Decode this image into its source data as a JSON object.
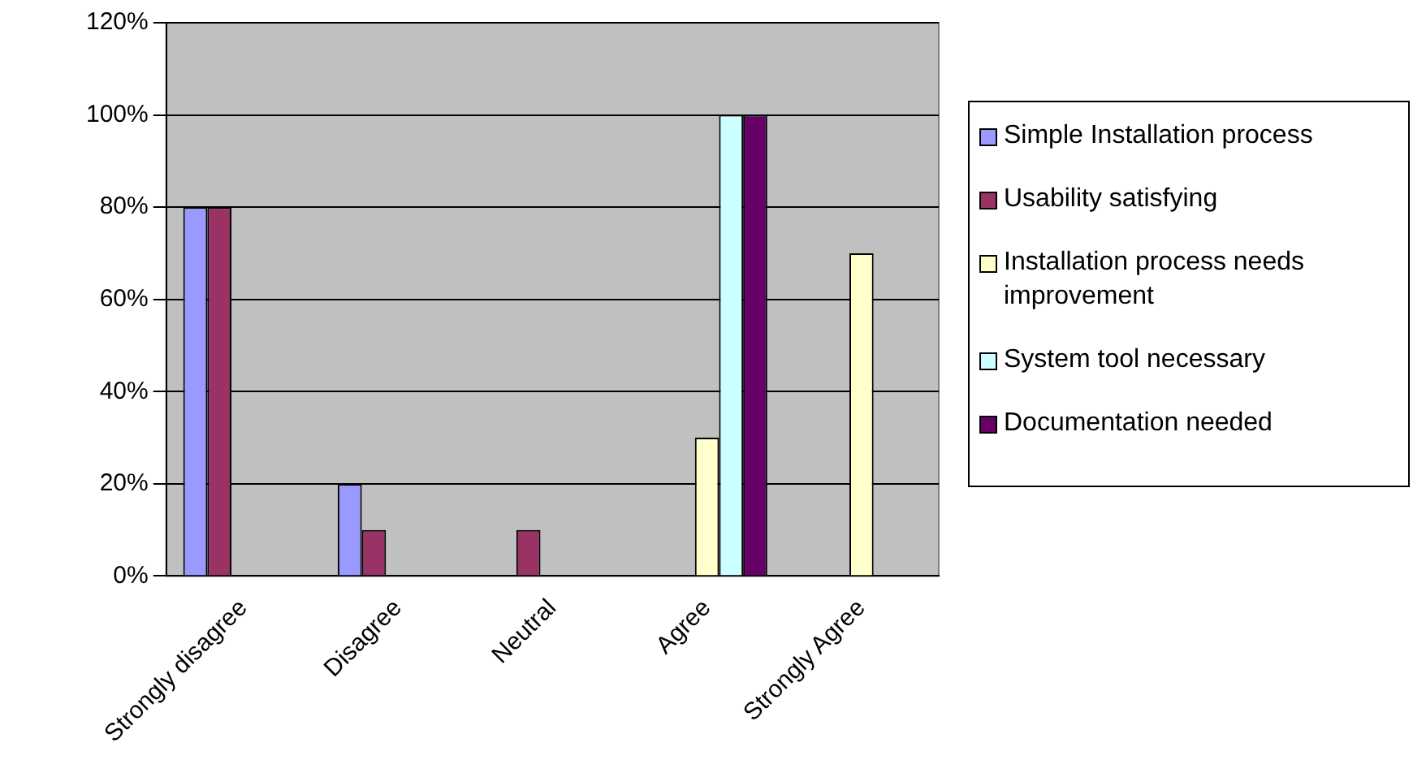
{
  "chart_data": {
    "type": "bar",
    "categories": [
      "Strongly disagree",
      "Disagree",
      "Neutral",
      "Agree",
      "Strongly Agree"
    ],
    "series": [
      {
        "name": "Simple Installation process",
        "color": "#9999ff",
        "values": [
          80,
          20,
          0,
          0,
          0
        ]
      },
      {
        "name": "Usability satisfying",
        "color": "#993366",
        "values": [
          80,
          10,
          10,
          0,
          0
        ]
      },
      {
        "name": "Installation process needs improvement",
        "color": "#ffffcc",
        "values": [
          0,
          0,
          0,
          30,
          70
        ]
      },
      {
        "name": "System tool necessary",
        "color": "#ccffff",
        "values": [
          0,
          0,
          0,
          100,
          0
        ]
      },
      {
        "name": "Documentation needed",
        "color": "#660066",
        "values": [
          0,
          0,
          0,
          100,
          0
        ]
      }
    ],
    "ylim": [
      0,
      120
    ],
    "yticks": [
      {
        "value": 0,
        "label": "0%"
      },
      {
        "value": 20,
        "label": "20%"
      },
      {
        "value": 40,
        "label": "40%"
      },
      {
        "value": 60,
        "label": "60%"
      },
      {
        "value": 80,
        "label": "80%"
      },
      {
        "value": 100,
        "label": "100%"
      },
      {
        "value": 120,
        "label": "120%"
      }
    ],
    "grid": "y",
    "legend": "right"
  }
}
